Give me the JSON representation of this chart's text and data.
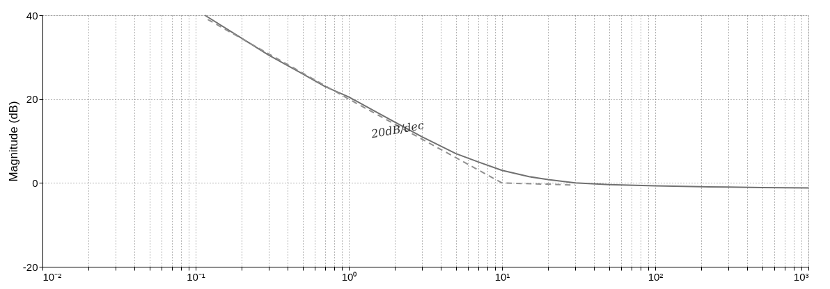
{
  "chart_data": {
    "type": "line",
    "ylabel": "Magnitude (dB)",
    "log": "x",
    "grid": true,
    "xlim": [
      0.01,
      1000
    ],
    "ylim": [
      -20,
      40
    ],
    "xticks": [
      {
        "value": 0.01,
        "label": "10⁻²"
      },
      {
        "value": 0.02,
        "label": null
      },
      {
        "value": 0.03,
        "label": null
      },
      {
        "value": 0.04,
        "label": null
      },
      {
        "value": 0.05,
        "label": null
      },
      {
        "value": 0.06,
        "label": null
      },
      {
        "value": 0.07,
        "label": null
      },
      {
        "value": 0.08,
        "label": null
      },
      {
        "value": 0.09,
        "label": null
      },
      {
        "value": 0.1,
        "label": "10⁻¹"
      },
      {
        "value": 0.2,
        "label": null
      },
      {
        "value": 0.3,
        "label": null
      },
      {
        "value": 0.4,
        "label": null
      },
      {
        "value": 0.5,
        "label": null
      },
      {
        "value": 0.6,
        "label": null
      },
      {
        "value": 0.7,
        "label": null
      },
      {
        "value": 0.8,
        "label": null
      },
      {
        "value": 0.9,
        "label": null
      },
      {
        "value": 1,
        "label": "10⁰"
      },
      {
        "value": 2,
        "label": null
      },
      {
        "value": 3,
        "label": null
      },
      {
        "value": 4,
        "label": null
      },
      {
        "value": 5,
        "label": null
      },
      {
        "value": 6,
        "label": null
      },
      {
        "value": 7,
        "label": null
      },
      {
        "value": 8,
        "label": null
      },
      {
        "value": 9,
        "label": null
      },
      {
        "value": 10,
        "label": "10¹"
      },
      {
        "value": 20,
        "label": null
      },
      {
        "value": 30,
        "label": null
      },
      {
        "value": 40,
        "label": null
      },
      {
        "value": 50,
        "label": null
      },
      {
        "value": 60,
        "label": null
      },
      {
        "value": 70,
        "label": null
      },
      {
        "value": 80,
        "label": null
      },
      {
        "value": 90,
        "label": null
      },
      {
        "value": 100,
        "label": "10²"
      },
      {
        "value": 200,
        "label": null
      },
      {
        "value": 300,
        "label": null
      },
      {
        "value": 400,
        "label": null
      },
      {
        "value": 500,
        "label": null
      },
      {
        "value": 600,
        "label": null
      },
      {
        "value": 700,
        "label": null
      },
      {
        "value": 800,
        "label": null
      },
      {
        "value": 900,
        "label": null
      },
      {
        "value": 1000,
        "label": "10³"
      }
    ],
    "yticks": [
      -20,
      0,
      20,
      40
    ],
    "series": [
      {
        "color": "#707070",
        "line_style": "solid",
        "x": [
          0.115,
          0.2,
          0.3,
          0.5,
          0.7,
          1,
          1.5,
          2,
          3,
          5,
          7,
          10,
          15,
          20,
          30,
          50,
          100,
          200,
          300,
          500,
          1000
        ],
        "values": [
          40,
          34.5,
          30.5,
          26,
          23,
          20.5,
          17,
          14.5,
          11,
          7,
          5,
          3,
          1.5,
          0.8,
          0,
          -0.4,
          -0.7,
          -0.9,
          -1,
          -1.1,
          -1.2
        ]
      },
      {
        "color": "#909090",
        "line_style": "dashed",
        "x": [
          0.12,
          1,
          10,
          30
        ],
        "values": [
          39,
          20,
          0,
          -0.5
        ]
      }
    ],
    "annotations": [
      "20dB/dec"
    ]
  }
}
